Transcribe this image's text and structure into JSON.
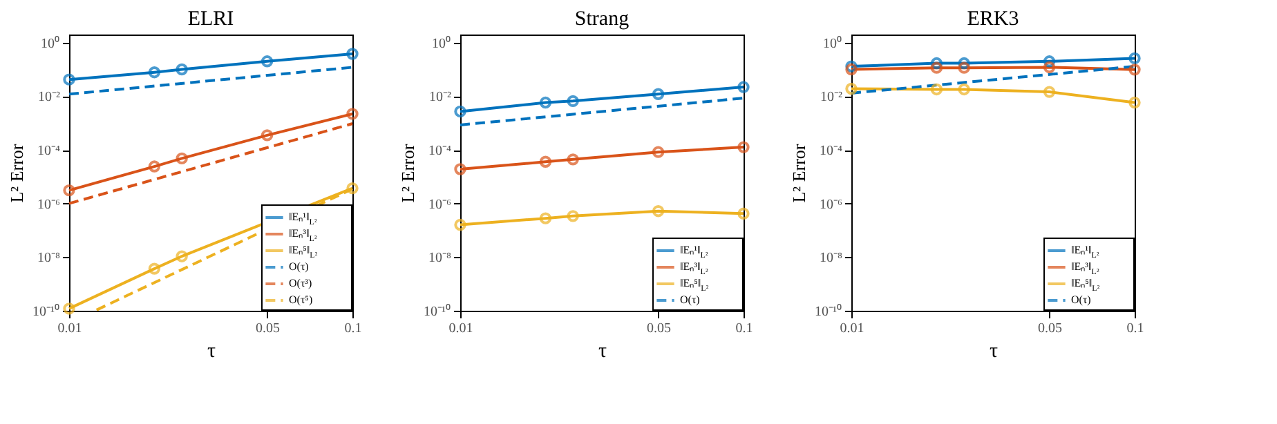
{
  "chart_data": [
    {
      "type": "line",
      "title": "ELRI",
      "xlabel": "τ",
      "ylabel": "L² Error",
      "log": "xy",
      "grid": false,
      "legend": "bottom right",
      "marker": "circle",
      "x": [
        0.01,
        0.02,
        0.025,
        0.05,
        0.1
      ],
      "xlim": [
        0.01,
        0.1
      ],
      "xticks": [
        0.01,
        0.05,
        0.1
      ],
      "ylim": [
        1e-10,
        2
      ],
      "yticks": [
        {
          "value": 1e-10,
          "label": "10⁻¹⁰"
        },
        {
          "value": 1e-08,
          "label": "10⁻⁸"
        },
        {
          "value": 1e-06,
          "label": "10⁻⁶"
        },
        {
          "value": 0.0001,
          "label": "10⁻⁴"
        },
        {
          "value": 0.01,
          "label": "10⁻²"
        },
        {
          "value": 1,
          "label": "10⁰"
        }
      ],
      "series": [
        {
          "name": "‖Eₙ¹‖$_{L²}$",
          "color": "#0072bd",
          "line_style": "solid",
          "values": [
            0.042,
            0.078,
            0.1,
            0.2,
            0.38
          ]
        },
        {
          "name": "‖Eₙ³‖$_{L²}$",
          "color": "#d95319",
          "line_style": "solid",
          "values": [
            3.1e-06,
            2.4e-05,
            4.8e-05,
            0.00035,
            0.0022
          ]
        },
        {
          "name": "‖Eₙ⁵‖$_{L²}$",
          "color": "#edb120",
          "line_style": "solid",
          "values": [
            1.2e-10,
            3.7e-09,
            1.07e-08,
            null,
            3.7e-06
          ]
        },
        {
          "name": "O(τ)",
          "color": "#0072bd",
          "marker": "none",
          "line_style": "dashed",
          "x": [
            0.01,
            0.1
          ],
          "values": [
            0.012,
            0.12
          ]
        },
        {
          "name": "O(τ³)",
          "color": "#d95319",
          "marker": "none",
          "line_style": "dashed",
          "x": [
            0.01,
            0.1
          ],
          "values": [
            1e-06,
            0.00095
          ]
        },
        {
          "name": "O(τ⁵)",
          "color": "#edb120",
          "marker": "none",
          "line_style": "dashed",
          "x": [
            0.0125,
            0.1
          ],
          "values": [
            1.07e-10,
            3.5e-06
          ]
        }
      ]
    },
    {
      "type": "line",
      "title": "Strang",
      "xlabel": "τ",
      "ylabel": "L² Error",
      "log": "xy",
      "grid": false,
      "legend": "bottom right",
      "marker": "circle",
      "x": [
        0.01,
        0.02,
        0.025,
        0.05,
        0.1
      ],
      "xlim": [
        0.01,
        0.1
      ],
      "xticks": [
        0.01,
        0.05,
        0.1
      ],
      "ylim": [
        1e-10,
        2
      ],
      "yticks": [
        {
          "value": 1e-10,
          "label": "10⁻¹⁰"
        },
        {
          "value": 1e-08,
          "label": "10⁻⁸"
        },
        {
          "value": 1e-06,
          "label": "10⁻⁶"
        },
        {
          "value": 0.0001,
          "label": "10⁻⁴"
        },
        {
          "value": 0.01,
          "label": "10⁻²"
        },
        {
          "value": 1,
          "label": "10⁰"
        }
      ],
      "series": [
        {
          "name": "‖Eₙ¹‖$_{L²}$",
          "color": "#0072bd",
          "line_style": "solid",
          "values": [
            0.0027,
            0.0058,
            0.0066,
            0.012,
            0.022
          ]
        },
        {
          "name": "‖Eₙ³‖$_{L²}$",
          "color": "#d95319",
          "line_style": "solid",
          "values": [
            1.9e-05,
            3.6e-05,
            4.4e-05,
            8.3e-05,
            0.000126
          ]
        },
        {
          "name": "‖Eₙ⁵‖$_{L²}$",
          "color": "#edb120",
          "line_style": "solid",
          "values": [
            1.6e-07,
            2.8e-07,
            3.4e-07,
            5.2e-07,
            4.2e-07
          ]
        },
        {
          "name": "O(τ)",
          "color": "#0072bd",
          "marker": "none",
          "line_style": "dashed",
          "x": [
            0.01,
            0.1
          ],
          "values": [
            0.00085,
            0.0085
          ]
        }
      ]
    },
    {
      "type": "line",
      "title": "ERK3",
      "xlabel": "τ",
      "ylabel": "L² Error",
      "log": "xy",
      "grid": false,
      "legend": "bottom right",
      "marker": "circle",
      "x": [
        0.01,
        0.02,
        0.025,
        0.05,
        0.1
      ],
      "xlim": [
        0.01,
        0.1
      ],
      "xticks": [
        0.01,
        0.05,
        0.1
      ],
      "ylim": [
        1e-10,
        2
      ],
      "yticks": [
        {
          "value": 1e-10,
          "label": "10⁻¹⁰"
        },
        {
          "value": 1e-08,
          "label": "10⁻⁸"
        },
        {
          "value": 1e-06,
          "label": "10⁻⁶"
        },
        {
          "value": 0.0001,
          "label": "10⁻⁴"
        },
        {
          "value": 0.01,
          "label": "10⁻²"
        },
        {
          "value": 1,
          "label": "10⁰"
        }
      ],
      "series": [
        {
          "name": "‖Eₙ¹‖$_{L²}$",
          "color": "#0072bd",
          "line_style": "solid",
          "values": [
            0.13,
            0.17,
            0.17,
            0.2,
            0.26
          ]
        },
        {
          "name": "‖Eₙ³‖$_{L²}$",
          "color": "#d95319",
          "line_style": "solid",
          "values": [
            0.1,
            0.115,
            0.115,
            0.12,
            0.098
          ]
        },
        {
          "name": "‖Eₙ⁵‖$_{L²}$",
          "color": "#edb120",
          "line_style": "solid",
          "values": [
            0.019,
            0.018,
            0.018,
            0.0145,
            0.0058
          ]
        },
        {
          "name": "O(τ)",
          "color": "#0072bd",
          "marker": "none",
          "line_style": "dashed",
          "x": [
            0.01,
            0.1
          ],
          "values": [
            0.013,
            0.13
          ]
        }
      ]
    }
  ]
}
